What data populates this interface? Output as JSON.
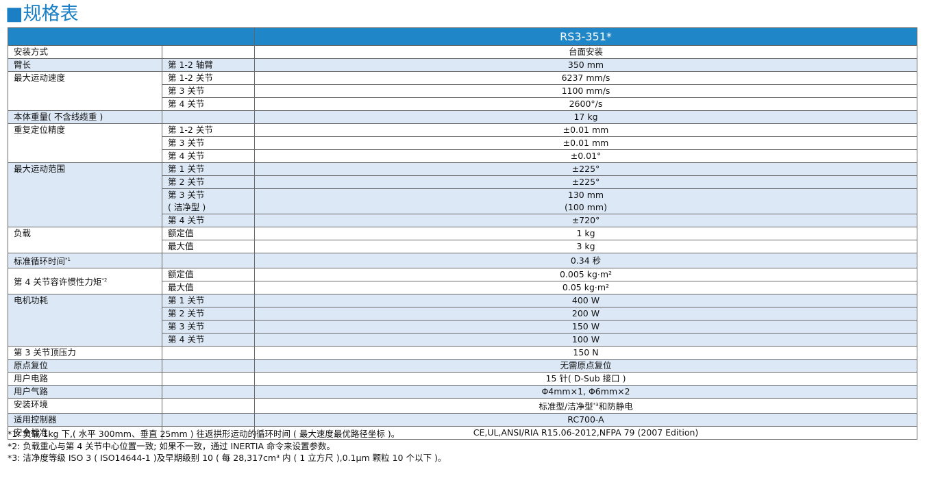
{
  "header": {
    "title": "■规格表"
  },
  "table": {
    "model": "RS3-351*",
    "groups": [
      {
        "label": "安装方式",
        "rows": [
          {
            "value": "台面安装"
          }
        ]
      },
      {
        "label": "臂长",
        "rows": [
          {
            "sub": "第 1-2 轴臂",
            "value": "350 mm"
          }
        ]
      },
      {
        "label": "最大运动速度",
        "rows": [
          {
            "sub": "第 1-2 关节",
            "value": "6237 mm/s"
          },
          {
            "sub": "第 3 关节",
            "value": "1100 mm/s"
          },
          {
            "sub": "第 4 关节",
            "value": "2600°/s"
          }
        ]
      },
      {
        "label": "本体重量( 不含线缆重 )",
        "rows": [
          {
            "value": "17 kg"
          }
        ]
      },
      {
        "label": "重复定位精度",
        "rows": [
          {
            "sub": "第 1-2 关节",
            "value": "±0.01 mm"
          },
          {
            "sub": "第 3 关节",
            "value": "±0.01 mm"
          },
          {
            "sub": "第 4 关节",
            "value": "±0.01°"
          }
        ]
      },
      {
        "label": "最大运动范围",
        "rows": [
          {
            "sub": "第 1 关节",
            "value": "±225°"
          },
          {
            "sub": "第 2 关节",
            "value": "±225°"
          },
          {
            "sub": [
              "第 3 关节",
              "( 洁净型 )"
            ],
            "value": [
              "130 mm",
              "(100 mm)"
            ]
          },
          {
            "sub": "第 4 关节",
            "value": "±720°"
          }
        ]
      },
      {
        "label": "负载",
        "rows": [
          {
            "sub": "额定值",
            "value": "1 kg"
          },
          {
            "sub": "最大值",
            "value": "3 kg"
          }
        ]
      },
      {
        "label": "标准循环时间",
        "note": "*1",
        "rows": [
          {
            "value": "0.34 秒"
          }
        ]
      },
      {
        "label": "第 4 关节容许惯性力矩",
        "note": "*2",
        "rows": [
          {
            "sub": "额定值",
            "value": "0.005 kg·m²"
          },
          {
            "sub": "最大值",
            "value": "0.05 kg·m²"
          }
        ]
      },
      {
        "label": "电机功耗",
        "rows": [
          {
            "sub": "第 1 关节",
            "value": "400 W"
          },
          {
            "sub": "第 2 关节",
            "value": "200 W"
          },
          {
            "sub": "第 3 关节",
            "value": "150 W"
          },
          {
            "sub": "第 4 关节",
            "value": "100 W"
          }
        ]
      },
      {
        "label": "第 3 关节顶压力",
        "rows": [
          {
            "value": "150 N"
          }
        ]
      },
      {
        "label": "原点复位",
        "rows": [
          {
            "value": "无需原点复位"
          }
        ]
      },
      {
        "label": "用户电路",
        "rows": [
          {
            "value": "15 针( D-Sub 接口 )"
          }
        ]
      },
      {
        "label": "用户气路",
        "rows": [
          {
            "value": "Φ4mm×1,  Φ6mm×2"
          }
        ]
      },
      {
        "label": "安装环境",
        "rows": [
          {
            "value": "标准型/洁净型",
            "value_note": "*3",
            "value_tail": "和防静电"
          }
        ]
      },
      {
        "label": "适用控制器",
        "rows": [
          {
            "value": "RC700-A"
          }
        ]
      },
      {
        "label": "安全标准",
        "rows": [
          {
            "value": "CE,UL,ANSI/RIA R15.06-2012,NFPA 79 (2007 Edition)"
          }
        ]
      }
    ]
  },
  "footnotes": [
    "*1: 负载 1kg 下,( 水平 300mm、垂直 25mm ) 往返拱形运动的循环时间 ( 最大速度最优路径坐标 )。",
    "*2: 负载重心与第 4 关节中心位置一致; 如果不一致，通过 INERTIA 命令来设置参数。",
    "*3: 洁净度等级 ISO 3 ( ISO14644-1 )及早期级别 10 ( 每 28,317cm³ 内 ( 1 立方尺 ),0.1μm 颗粒 10 个以下 )。"
  ]
}
